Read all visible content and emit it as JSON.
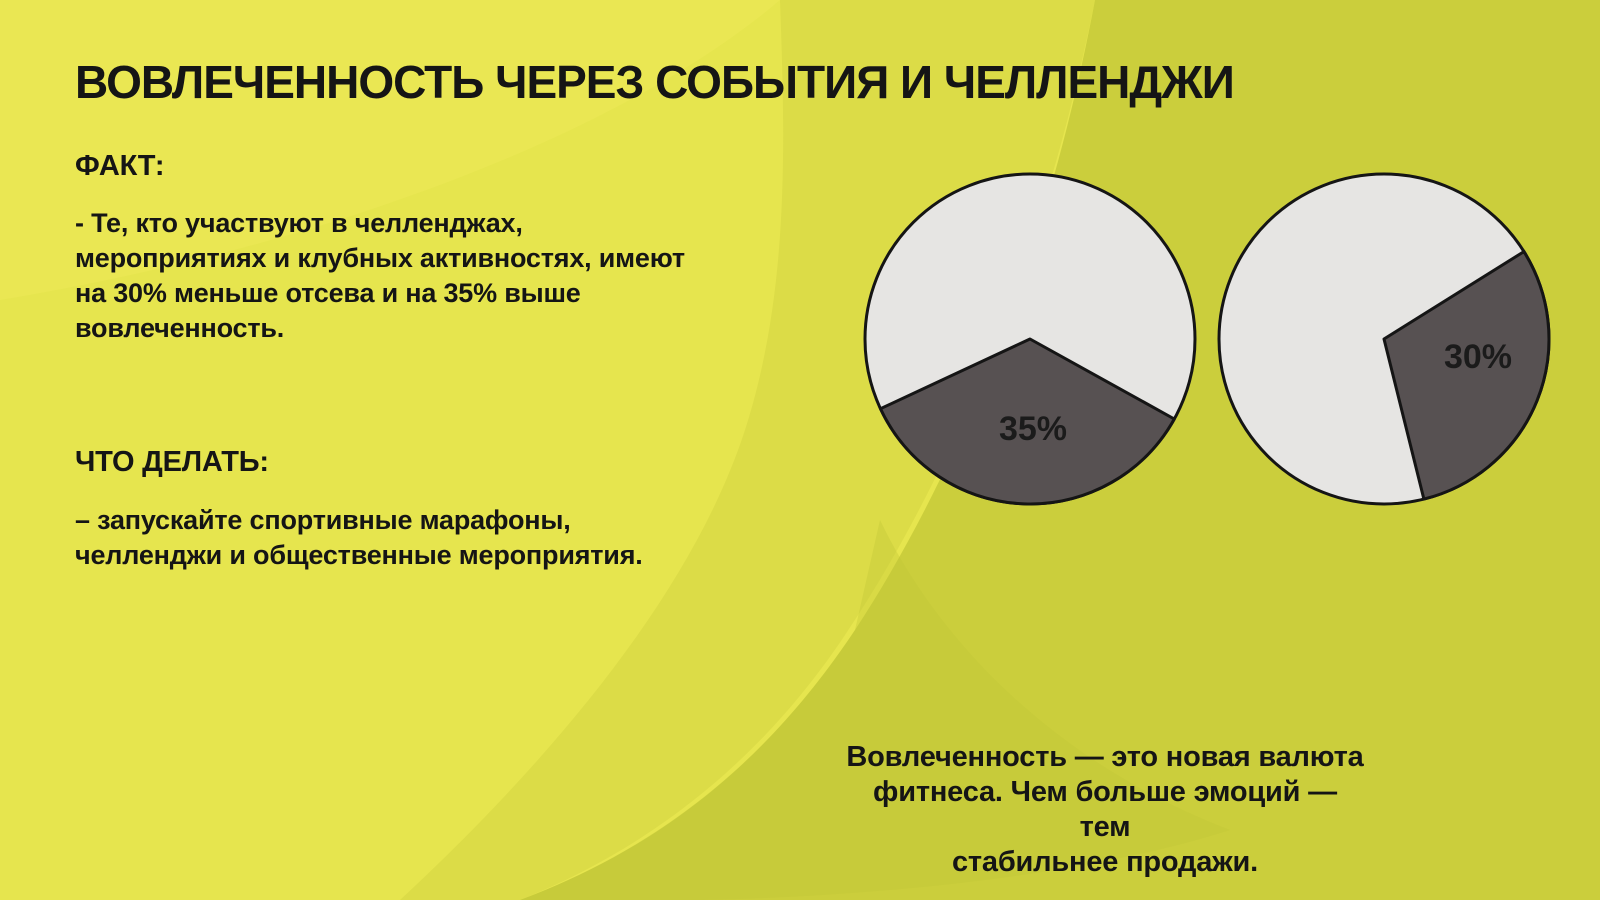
{
  "slide": {
    "title": "ВОВЛЕЧЕННОСТЬ ЧЕРЕЗ СОБЫТИЯ И ЧЕЛЛЕНДЖИ",
    "fact": {
      "heading": "ФАКТ:",
      "body": "- Те, кто участвуют в челленджах,\nмероприятиях и клубных активностях, имеют\nна 30% меньше отсева и на 35% выше\nвовлеченность."
    },
    "todo": {
      "heading": "ЧТО ДЕЛАТЬ:",
      "body": "– запускайте спортивные марафоны,\nчелленджи и общественные мероприятия."
    },
    "caption": "Вовлеченность — это новая валюта\nфитнеса. Чем больше эмоций — тем\nстабильнее продажи."
  },
  "chart_data": [
    {
      "type": "pie",
      "units": "percent",
      "slices": [
        {
          "label": "35%",
          "value": 35,
          "color": "#575152"
        },
        {
          "label": "",
          "value": 65,
          "color": "#e6e5e3"
        }
      ],
      "layout": {
        "slice_start_deg": 29,
        "label_xy": [
          175,
          273
        ]
      }
    },
    {
      "type": "pie",
      "units": "percent",
      "slices": [
        {
          "label": "30%",
          "value": 30,
          "color": "#575152"
        },
        {
          "label": "",
          "value": 70,
          "color": "#e6e5e3"
        }
      ],
      "layout": {
        "slice_start_deg": -32,
        "label_xy": [
          266,
          201
        ]
      }
    }
  ],
  "colors": {
    "bg_bright": "#e6e54e",
    "bg_mid": "#dcdc47",
    "bg_olive": "#cbce3c",
    "bg_highlight": "#ecea58",
    "bg_sweep": "#c1c537",
    "text": "#151515",
    "pie_outline": "#151515"
  }
}
